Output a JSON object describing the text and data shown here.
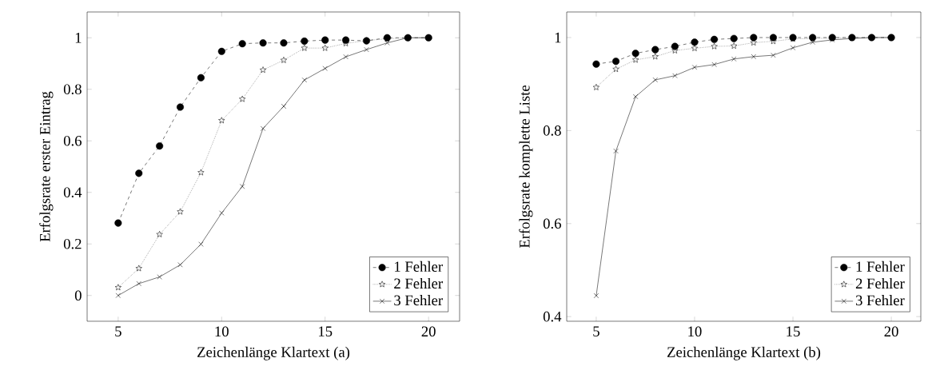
{
  "chart_data": [
    {
      "type": "line",
      "xlabel": "Zeichenlänge Klartext (a)",
      "ylabel": "Erfolgsrate erster Eintrag",
      "xlim": [
        3.5,
        21.5
      ],
      "ylim": [
        -0.1,
        1.1
      ],
      "xticks": [
        5,
        10,
        15,
        20
      ],
      "yticks": [
        0,
        0.2,
        0.4,
        0.6,
        0.8,
        1
      ],
      "legend": "bottom right",
      "x": [
        5,
        6,
        7,
        8,
        9,
        10,
        11,
        12,
        13,
        14,
        15,
        16,
        17,
        18,
        19,
        20
      ],
      "series": [
        {
          "name": "1 Fehler",
          "color": "#000000",
          "marker": "circle",
          "line_style": "dashed",
          "values": [
            0.281,
            0.474,
            0.58,
            0.731,
            0.845,
            0.947,
            0.977,
            0.98,
            0.98,
            0.987,
            0.991,
            0.991,
            0.988,
            1,
            1,
            1
          ]
        },
        {
          "name": "2 Fehler",
          "color": "#000000",
          "marker": "star",
          "line_style": "dotted",
          "values": [
            0.031,
            0.105,
            0.237,
            0.325,
            0.477,
            0.679,
            0.762,
            0.875,
            0.913,
            0.96,
            0.96,
            0.978,
            0.989,
            0.996,
            1,
            1
          ]
        },
        {
          "name": "3 Fehler",
          "color": "#000000",
          "marker": "cross",
          "line_style": "solid",
          "values": [
            0,
            0.046,
            0.072,
            0.119,
            0.199,
            0.32,
            0.423,
            0.648,
            0.734,
            0.836,
            0.881,
            0.926,
            0.954,
            0.98,
            1,
            1
          ]
        }
      ]
    },
    {
      "type": "line",
      "xlabel": "Zeichenlänge Klartext (b)",
      "ylabel": "Erfolgsrate komplette Liste",
      "xlim": [
        3.5,
        21.5
      ],
      "ylim": [
        0.39,
        1.055
      ],
      "xticks": [
        5,
        10,
        15,
        20
      ],
      "yticks": [
        0.4,
        0.6,
        0.8,
        1
      ],
      "legend": "bottom right",
      "x": [
        5,
        6,
        7,
        8,
        9,
        10,
        11,
        12,
        13,
        14,
        15,
        16,
        17,
        18,
        19,
        20
      ],
      "series": [
        {
          "name": "1 Fehler",
          "color": "#000000",
          "marker": "circle",
          "line_style": "dashed",
          "values": [
            0.943,
            0.949,
            0.966,
            0.974,
            0.981,
            0.99,
            0.996,
            0.998,
            1,
            1,
            1,
            1,
            1,
            1,
            1,
            1
          ]
        },
        {
          "name": "2 Fehler",
          "color": "#000000",
          "marker": "star",
          "line_style": "dotted",
          "values": [
            0.893,
            0.932,
            0.952,
            0.959,
            0.972,
            0.977,
            0.981,
            0.982,
            0.989,
            0.992,
            0.997,
            0.998,
            0.999,
            1,
            1,
            1
          ]
        },
        {
          "name": "3 Fehler",
          "color": "#000000",
          "marker": "cross",
          "line_style": "solid",
          "values": [
            0.445,
            0.756,
            0.873,
            0.909,
            0.918,
            0.936,
            0.942,
            0.954,
            0.959,
            0.962,
            0.978,
            0.99,
            0.995,
            0.998,
            1,
            1
          ]
        }
      ]
    }
  ]
}
